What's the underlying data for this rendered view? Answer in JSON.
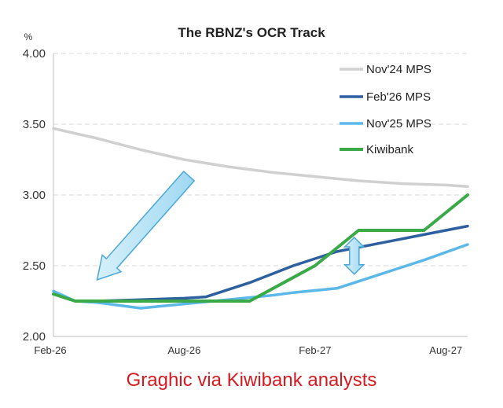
{
  "caption": {
    "text": "Graghic via Kiwibank analysts",
    "color": "#d71920"
  },
  "chart_data": {
    "type": "line",
    "title": "The RBNZ's OCR Track",
    "ylabel": "%",
    "xlabel": "",
    "ylim": [
      2.0,
      4.0
    ],
    "xlim": [
      0,
      19
    ],
    "y_ticks": [
      "2.00",
      "2.50",
      "3.00",
      "3.50",
      "4.00"
    ],
    "y_tick_values": [
      2.0,
      2.5,
      3.0,
      3.5,
      4.0
    ],
    "x_ticks": [
      "Feb-26",
      "Aug-26",
      "Feb-27",
      "Aug-27"
    ],
    "x_tick_values": [
      0,
      6,
      12,
      18
    ],
    "grid": "horizontal dashed",
    "legend": "top-right",
    "series": [
      {
        "name": "Nov'24 MPS",
        "color": "#d0d0d0",
        "x": [
          0,
          2,
          4,
          6,
          8,
          10,
          12,
          14,
          16,
          18,
          19
        ],
        "y": [
          3.47,
          3.4,
          3.32,
          3.25,
          3.2,
          3.16,
          3.13,
          3.1,
          3.08,
          3.07,
          3.06
        ]
      },
      {
        "name": "Feb'26 MPS",
        "color": "#2e5f9e",
        "x": [
          0,
          1,
          2,
          4,
          6,
          7,
          9,
          11,
          13,
          15,
          17,
          19
        ],
        "y": [
          2.3,
          2.25,
          2.25,
          2.26,
          2.27,
          2.28,
          2.38,
          2.5,
          2.6,
          2.66,
          2.72,
          2.78
        ]
      },
      {
        "name": "Nov'25 MPS",
        "color": "#5bb8e8",
        "x": [
          0,
          1,
          2,
          3,
          4,
          6,
          8,
          10,
          11,
          13,
          15,
          17,
          19
        ],
        "y": [
          2.32,
          2.25,
          2.24,
          2.22,
          2.2,
          2.23,
          2.26,
          2.29,
          2.31,
          2.34,
          2.44,
          2.54,
          2.65
        ]
      },
      {
        "name": "Kiwibank",
        "color": "#3aaa48",
        "x": [
          0,
          1,
          9,
          12,
          14,
          16,
          17,
          19
        ],
        "y": [
          2.3,
          2.25,
          2.25,
          2.5,
          2.75,
          2.75,
          2.75,
          3.0
        ]
      }
    ],
    "annotations": [
      {
        "type": "arrow",
        "direction": "down-left",
        "color": "#aee0f5",
        "from": [
          6,
          3.1
        ],
        "to": [
          2,
          2.4
        ]
      },
      {
        "type": "double-arrow",
        "direction": "vertical",
        "color": "#aee0f5",
        "from": [
          13.8,
          2.7
        ],
        "to": [
          13.8,
          2.44
        ]
      }
    ]
  }
}
